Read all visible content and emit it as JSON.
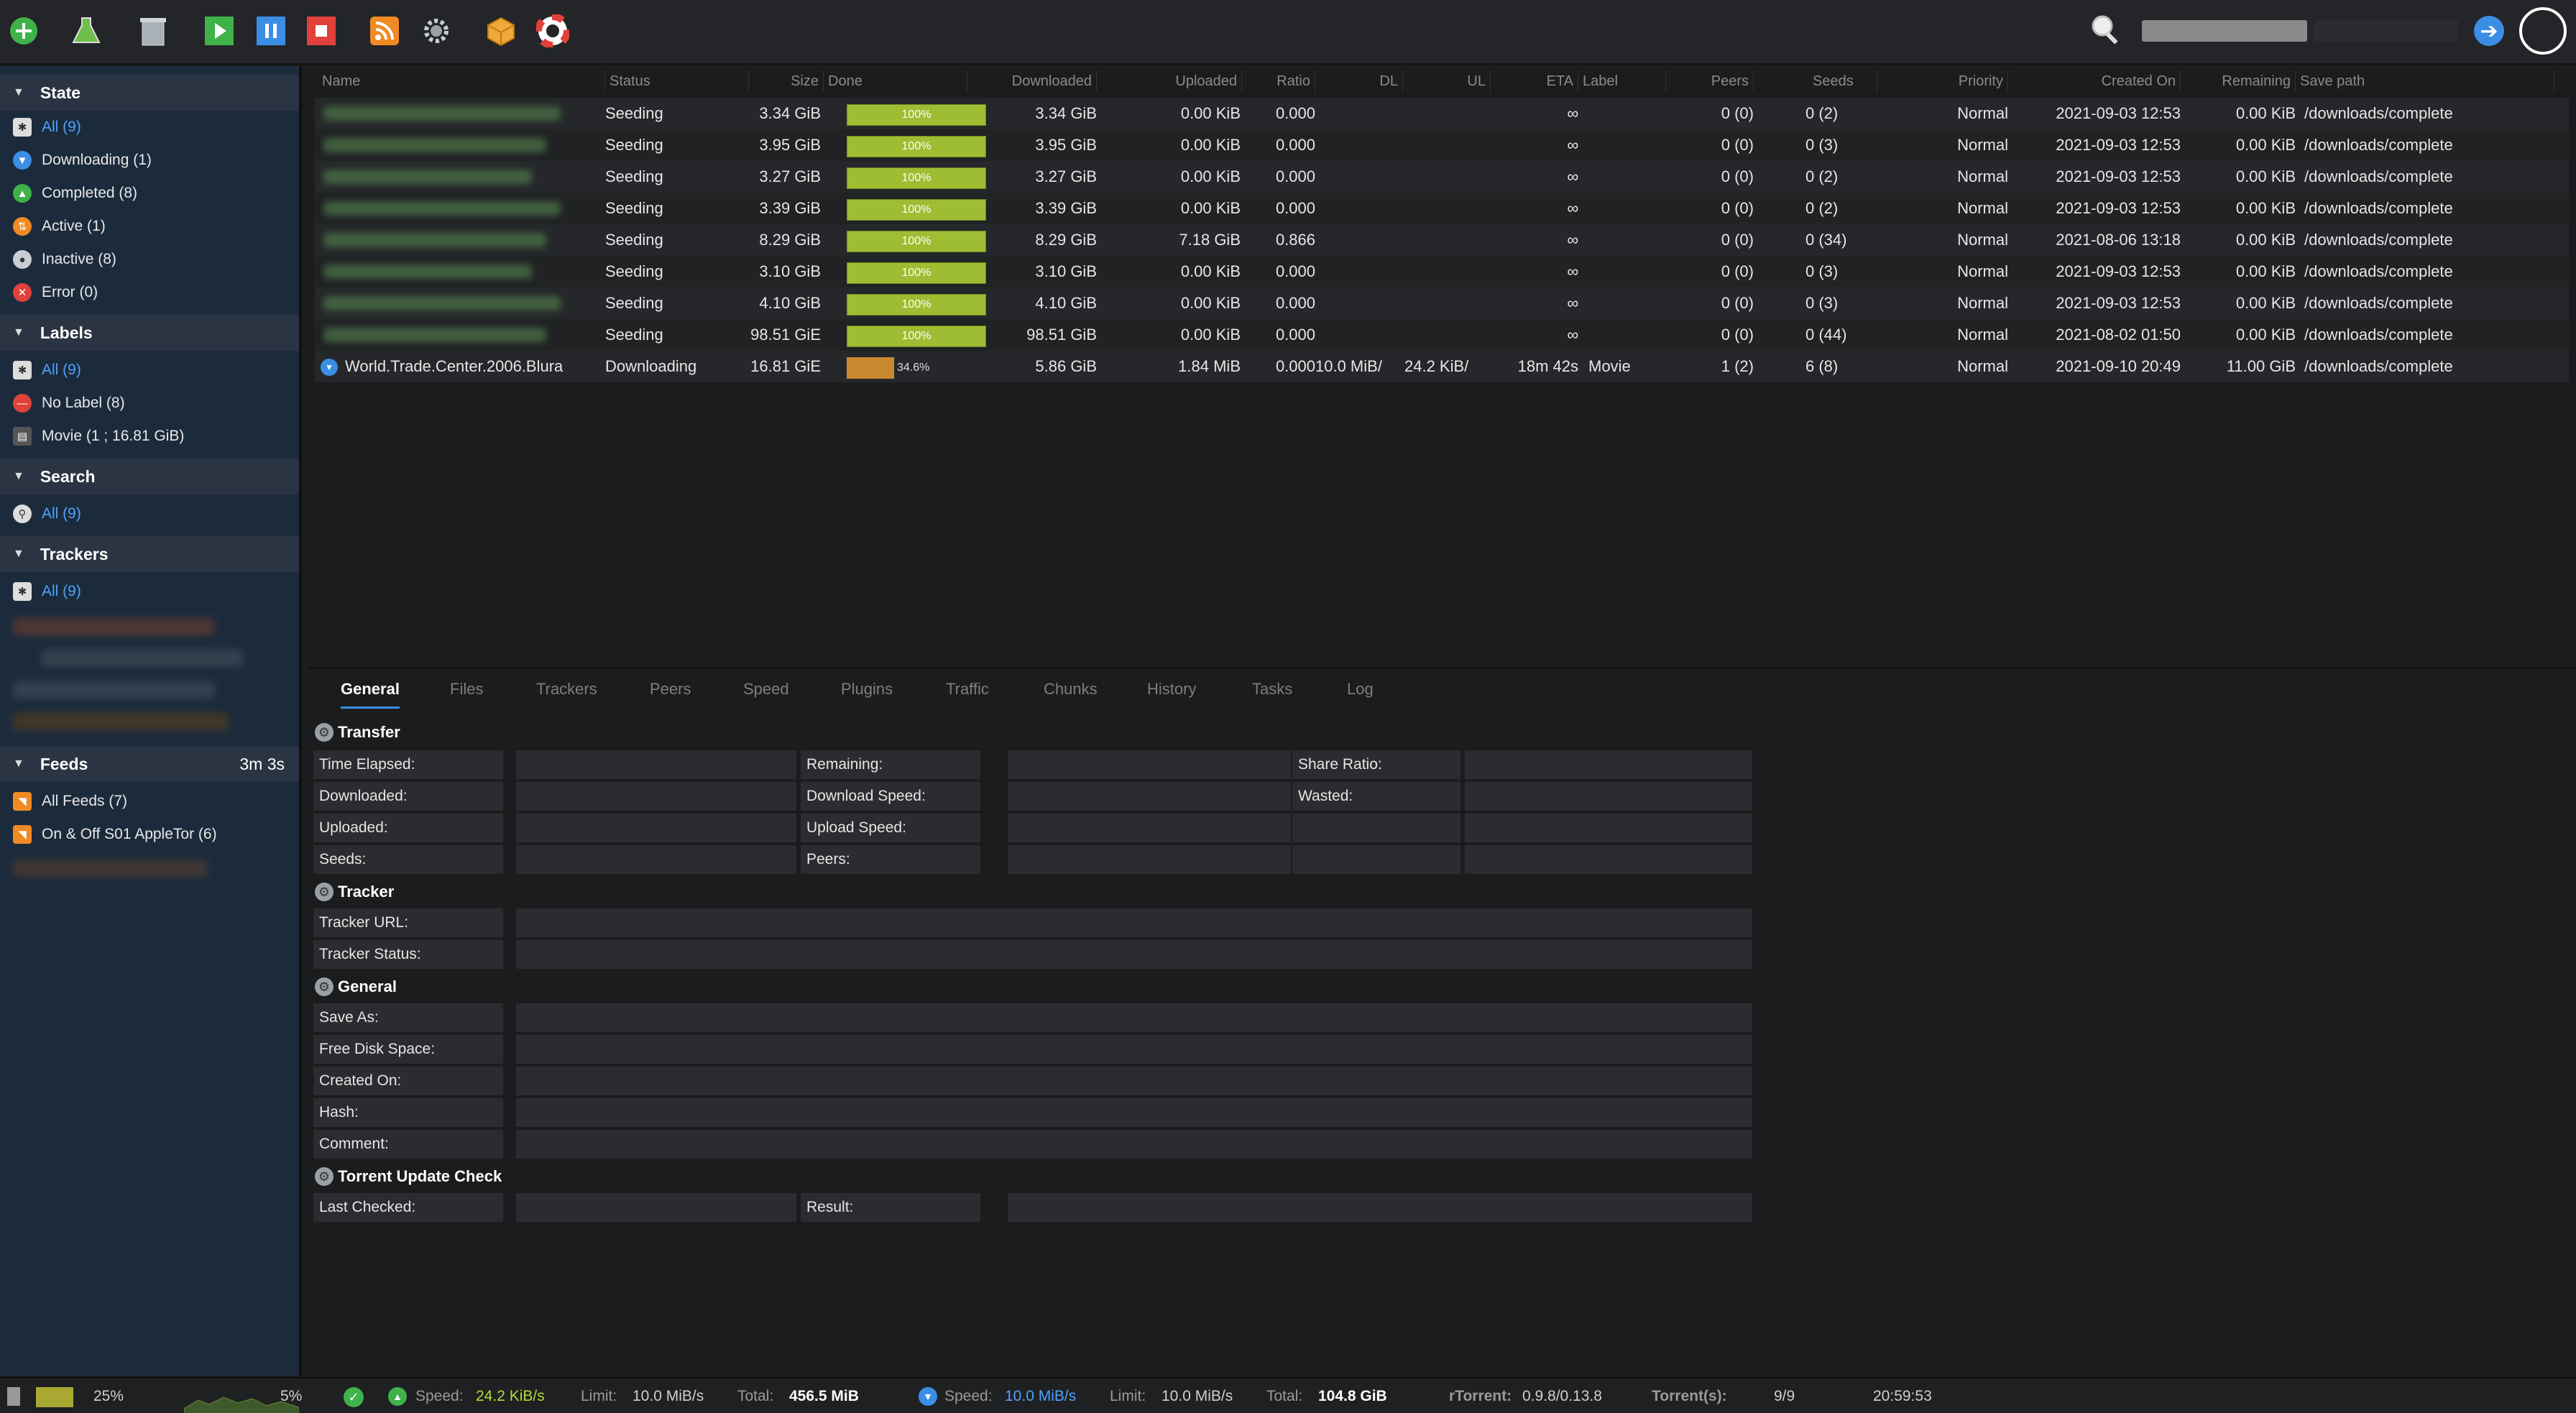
{
  "toolbar": {
    "buttons": [
      "add-torrent",
      "create-torrent",
      "remove-torrent",
      "start",
      "pause",
      "stop",
      "rss",
      "settings",
      "plugins",
      "help"
    ]
  },
  "sidebar": {
    "state": {
      "title": "State",
      "items": [
        {
          "label": "All (9)"
        },
        {
          "label": "Downloading (1)"
        },
        {
          "label": "Completed (8)"
        },
        {
          "label": "Active (1)"
        },
        {
          "label": "Inactive (8)"
        },
        {
          "label": "Error (0)"
        }
      ]
    },
    "labels": {
      "title": "Labels",
      "items": [
        {
          "label": "All (9)"
        },
        {
          "label": "No Label (8)"
        },
        {
          "label": "Movie (1 ; 16.81 GiB)"
        }
      ]
    },
    "search": {
      "title": "Search",
      "items": [
        {
          "label": "All (9)"
        }
      ]
    },
    "trackers": {
      "title": "Trackers",
      "items": [
        {
          "label": "All (9)"
        }
      ]
    },
    "feeds": {
      "title": "Feeds",
      "refresh": "3m 3s",
      "items": [
        {
          "label": "All Feeds (7)"
        },
        {
          "label": "On & Off S01 AppleTor (6)"
        }
      ]
    }
  },
  "table": {
    "columns": [
      "Name",
      "Status",
      "Size",
      "Done",
      "Downloaded",
      "Uploaded",
      "Ratio",
      "DL",
      "UL",
      "ETA",
      "Label",
      "Peers",
      "Seeds",
      "Priority",
      "Created On",
      "Remaining",
      "Save path"
    ],
    "rows": [
      {
        "name": "",
        "status": "Seeding",
        "size": "3.34 GiB",
        "done_label": "100%",
        "done": 1.0,
        "downloaded": "3.34 GiB",
        "uploaded": "0.00 KiB",
        "ratio": "0.000",
        "dl": "",
        "ul": "",
        "eta": "∞",
        "label": "",
        "peers": "0 (0)",
        "seeds": "0 (2)",
        "priority": "Normal",
        "created": "2021-09-03 12:53",
        "remaining": "0.00 KiB",
        "path": "/downloads/complete"
      },
      {
        "name": "",
        "status": "Seeding",
        "size": "3.95 GiB",
        "done_label": "100%",
        "done": 1.0,
        "downloaded": "3.95 GiB",
        "uploaded": "0.00 KiB",
        "ratio": "0.000",
        "dl": "",
        "ul": "",
        "eta": "∞",
        "label": "",
        "peers": "0 (0)",
        "seeds": "0 (3)",
        "priority": "Normal",
        "created": "2021-09-03 12:53",
        "remaining": "0.00 KiB",
        "path": "/downloads/complete"
      },
      {
        "name": "",
        "status": "Seeding",
        "size": "3.27 GiB",
        "done_label": "100%",
        "done": 1.0,
        "downloaded": "3.27 GiB",
        "uploaded": "0.00 KiB",
        "ratio": "0.000",
        "dl": "",
        "ul": "",
        "eta": "∞",
        "label": "",
        "peers": "0 (0)",
        "seeds": "0 (2)",
        "priority": "Normal",
        "created": "2021-09-03 12:53",
        "remaining": "0.00 KiB",
        "path": "/downloads/complete"
      },
      {
        "name": "",
        "status": "Seeding",
        "size": "3.39 GiB",
        "done_label": "100%",
        "done": 1.0,
        "downloaded": "3.39 GiB",
        "uploaded": "0.00 KiB",
        "ratio": "0.000",
        "dl": "",
        "ul": "",
        "eta": "∞",
        "label": "",
        "peers": "0 (0)",
        "seeds": "0 (2)",
        "priority": "Normal",
        "created": "2021-09-03 12:53",
        "remaining": "0.00 KiB",
        "path": "/downloads/complete"
      },
      {
        "name": "",
        "status": "Seeding",
        "size": "8.29 GiB",
        "done_label": "100%",
        "done": 1.0,
        "downloaded": "8.29 GiB",
        "uploaded": "7.18 GiB",
        "ratio": "0.866",
        "dl": "",
        "ul": "",
        "eta": "∞",
        "label": "",
        "peers": "0 (0)",
        "seeds": "0 (34)",
        "priority": "Normal",
        "created": "2021-08-06 13:18",
        "remaining": "0.00 KiB",
        "path": "/downloads/complete"
      },
      {
        "name": "",
        "status": "Seeding",
        "size": "3.10 GiB",
        "done_label": "100%",
        "done": 1.0,
        "downloaded": "3.10 GiB",
        "uploaded": "0.00 KiB",
        "ratio": "0.000",
        "dl": "",
        "ul": "",
        "eta": "∞",
        "label": "",
        "peers": "0 (0)",
        "seeds": "0 (3)",
        "priority": "Normal",
        "created": "2021-09-03 12:53",
        "remaining": "0.00 KiB",
        "path": "/downloads/complete"
      },
      {
        "name": "",
        "status": "Seeding",
        "size": "4.10 GiB",
        "done_label": "100%",
        "done": 1.0,
        "downloaded": "4.10 GiB",
        "uploaded": "0.00 KiB",
        "ratio": "0.000",
        "dl": "",
        "ul": "",
        "eta": "∞",
        "label": "",
        "peers": "0 (0)",
        "seeds": "0 (3)",
        "priority": "Normal",
        "created": "2021-09-03 12:53",
        "remaining": "0.00 KiB",
        "path": "/downloads/complete"
      },
      {
        "name": "",
        "status": "Seeding",
        "size": "98.51 GiE",
        "done_label": "100%",
        "done": 1.0,
        "downloaded": "98.51 GiB",
        "uploaded": "0.00 KiB",
        "ratio": "0.000",
        "dl": "",
        "ul": "",
        "eta": "∞",
        "label": "",
        "peers": "0 (0)",
        "seeds": "0 (44)",
        "priority": "Normal",
        "created": "2021-08-02 01:50",
        "remaining": "0.00 KiB",
        "path": "/downloads/complete"
      },
      {
        "name": "World.Trade.Center.2006.Blura",
        "status": "Downloading",
        "size": "16.81 GiE",
        "done_label": "34.6%",
        "done": 0.346,
        "downloaded": "5.86 GiB",
        "uploaded": "1.84 MiB",
        "ratio": "0.000",
        "dl": "10.0 MiB/",
        "ul": "24.2 KiB/",
        "eta": "18m 42s",
        "label": "Movie",
        "peers": "1 (2)",
        "seeds": "6 (8)",
        "priority": "Normal",
        "created": "2021-09-10 20:49",
        "remaining": "11.00 GiB",
        "path": "/downloads/complete"
      }
    ]
  },
  "details": {
    "tabs": [
      "General",
      "Files",
      "Trackers",
      "Peers",
      "Speed",
      "Plugins",
      "Traffic",
      "Chunks",
      "History",
      "Tasks",
      "Log"
    ],
    "transfer": {
      "title": "Transfer",
      "labels": [
        "Time Elapsed:",
        "Downloaded:",
        "Uploaded:",
        "Seeds:",
        "Remaining:",
        "Download Speed:",
        "Upload Speed:",
        "Peers:",
        "Share Ratio:",
        "Wasted:"
      ]
    },
    "tracker": {
      "title": "Tracker",
      "labels": [
        "Tracker URL:",
        "Tracker Status:"
      ]
    },
    "general": {
      "title": "General",
      "labels": [
        "Save As:",
        "Free Disk Space:",
        "Created On:",
        "Hash:",
        "Comment:"
      ]
    },
    "update": {
      "title": "Torrent Update Check",
      "labels": [
        "Last Checked:",
        "Result:"
      ]
    }
  },
  "status": {
    "cpu": "25%",
    "disk": "5%",
    "ul_speed_label": "Speed:",
    "ul_speed": "24.2 KiB/s",
    "ul_limit_label": "Limit:",
    "ul_limit": "10.0 MiB/s",
    "ul_total_label": "Total:",
    "ul_total": "456.5 MiB",
    "dl_speed_label": "Speed:",
    "dl_speed": "10.0 MiB/s",
    "dl_limit_label": "Limit:",
    "dl_limit": "10.0 MiB/s",
    "dl_total_label": "Total:",
    "dl_total": "104.8 GiB",
    "rtorrent_label": "rTorrent:",
    "rtorrent": "0.9.8/0.13.8",
    "torrents_label": "Torrent(s):",
    "torrents": "9/9",
    "time": "20:59:53"
  }
}
